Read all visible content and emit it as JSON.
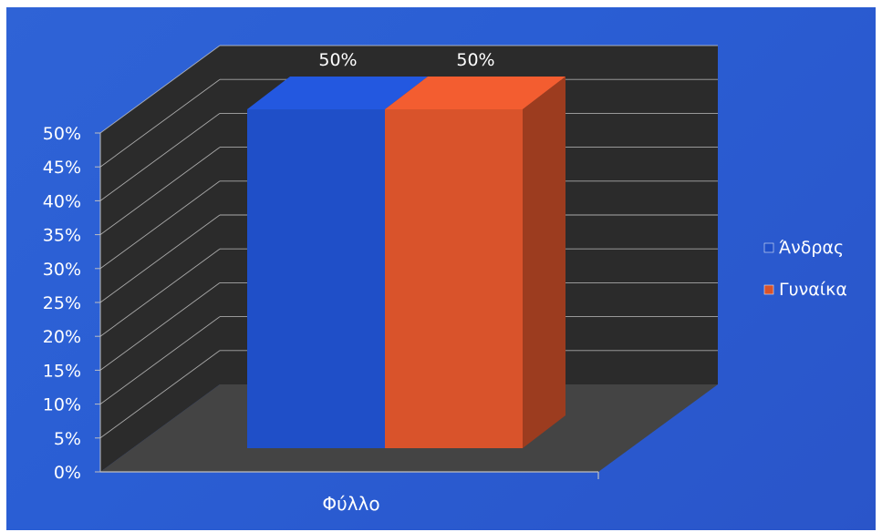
{
  "chart_data": {
    "type": "bar",
    "categories": [
      "Φύλλο"
    ],
    "series": [
      {
        "name": "Άνδρας",
        "values": [
          50
        ],
        "label": "50%",
        "color": "#1f4fc8"
      },
      {
        "name": "Γυναίκα",
        "values": [
          50
        ],
        "label": "50%",
        "color": "#d9532b"
      }
    ],
    "y_ticks": [
      "0%",
      "5%",
      "10%",
      "15%",
      "20%",
      "25%",
      "30%",
      "35%",
      "40%",
      "45%",
      "50%"
    ],
    "ylim": [
      0,
      50
    ],
    "grid": true,
    "three_d": true,
    "legend_position": "right",
    "colors": {
      "background": "#2a5ed4",
      "wall": "#2b2b2b",
      "floor": "#444444",
      "grid": "#c8c8c8"
    }
  }
}
